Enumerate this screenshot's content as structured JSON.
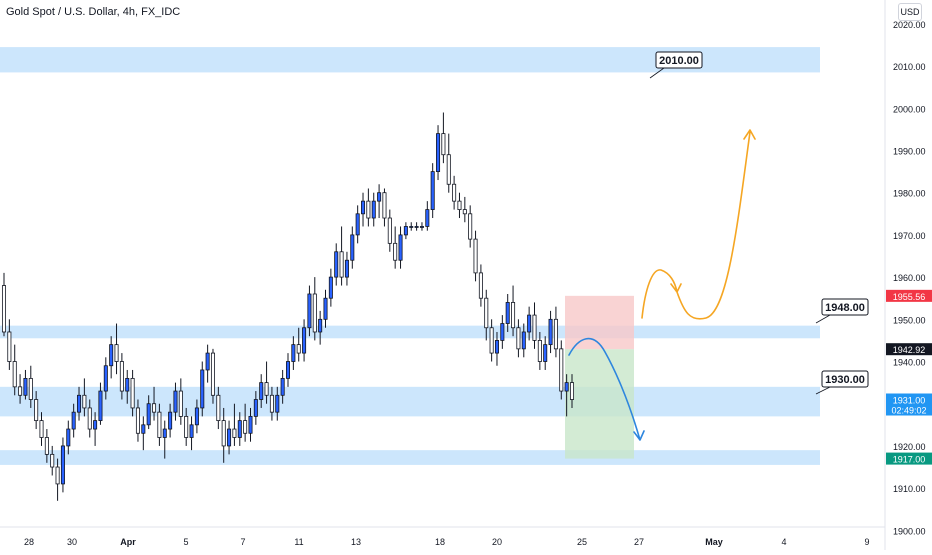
{
  "header": {
    "symbol_title": "Gold Spot / U.S. Dollar, 4h, FX_IDC",
    "currency_button": "USD"
  },
  "colors": {
    "up_candle": "#2962ff",
    "down_candle": "#ffffff",
    "wick": "#131722",
    "zone_fill": "#bbdefb",
    "stop_zone": "#f8c8c8",
    "target_zone": "#c8e6c9",
    "orange_path": "#f5a623",
    "blue_path": "#2e86de",
    "badge_red": "#f23645",
    "badge_blue": "#2196f3",
    "badge_green": "#089981",
    "badge_dark": "#131722"
  },
  "chart_data": {
    "type": "candlestick",
    "title": "Gold Spot / U.S. Dollar, 4h, FX_IDC",
    "ylim": [
      1897,
      2024
    ],
    "y_ticks": [
      "2020.00",
      "2010.00",
      "2000.00",
      "1990.00",
      "1980.00",
      "1970.00",
      "1960.00",
      "1950.00",
      "1940.00",
      "1930.00",
      "1920.00",
      "1910.00",
      "1900.00"
    ],
    "x_ticks": [
      "28",
      "30",
      "Apr",
      "5",
      "7",
      "11",
      "13",
      "18",
      "20",
      "25",
      "27",
      "May",
      "4",
      "9"
    ],
    "zones": [
      {
        "low": 2008.5,
        "high": 2014.5
      },
      {
        "low": 1945.5,
        "high": 1948.5
      },
      {
        "low": 1927,
        "high": 1934
      },
      {
        "low": 1915.5,
        "high": 1919
      }
    ],
    "position": {
      "entry": 1942.92,
      "stop": 1955.56,
      "target": 1917.0
    },
    "price_badges": [
      {
        "label": "1955.56",
        "value": 1955.56,
        "color": "red"
      },
      {
        "label": "1942.92",
        "value": 1942.92,
        "color": "dark"
      },
      {
        "label": "1931.00",
        "sub": "02:49:02",
        "value": 1931.0,
        "color": "blue"
      },
      {
        "label": "1917.00",
        "value": 1917.0,
        "color": "green"
      }
    ],
    "annotations": [
      {
        "label": "2010.00",
        "value": 2010.0
      },
      {
        "label": "1948.00",
        "value": 1948.0
      },
      {
        "label": "1930.00",
        "value": 1930.0
      }
    ],
    "candles": [
      [
        1958,
        1961,
        1946,
        1947
      ],
      [
        1947,
        1950,
        1938,
        1940
      ],
      [
        1940,
        1944,
        1932,
        1934
      ],
      [
        1934,
        1937,
        1930,
        1932
      ],
      [
        1932,
        1938,
        1931,
        1936
      ],
      [
        1936,
        1939,
        1929,
        1931
      ],
      [
        1931,
        1933,
        1924,
        1926
      ],
      [
        1926,
        1928,
        1920,
        1922
      ],
      [
        1922,
        1924,
        1916,
        1918
      ],
      [
        1918,
        1920,
        1913,
        1915
      ],
      [
        1915,
        1917,
        1907,
        1911
      ],
      [
        1911,
        1922,
        1909,
        1920
      ],
      [
        1920,
        1926,
        1918,
        1924
      ],
      [
        1924,
        1930,
        1922,
        1928
      ],
      [
        1928,
        1934,
        1926,
        1932
      ],
      [
        1932,
        1936,
        1927,
        1929
      ],
      [
        1929,
        1931,
        1922,
        1924
      ],
      [
        1924,
        1928,
        1920,
        1926
      ],
      [
        1926,
        1935,
        1925,
        1933
      ],
      [
        1933,
        1941,
        1931,
        1939
      ],
      [
        1939,
        1946,
        1936,
        1944
      ],
      [
        1944,
        1949,
        1937,
        1940
      ],
      [
        1940,
        1942,
        1931,
        1933
      ],
      [
        1933,
        1938,
        1930,
        1936
      ],
      [
        1936,
        1938,
        1927,
        1929
      ],
      [
        1929,
        1931,
        1921,
        1923
      ],
      [
        1923,
        1927,
        1919,
        1925
      ],
      [
        1925,
        1932,
        1924,
        1930
      ],
      [
        1930,
        1934,
        1926,
        1928
      ],
      [
        1928,
        1930,
        1920,
        1922
      ],
      [
        1922,
        1926,
        1917,
        1924
      ],
      [
        1924,
        1930,
        1922,
        1928
      ],
      [
        1928,
        1935,
        1926,
        1933
      ],
      [
        1933,
        1936,
        1925,
        1927
      ],
      [
        1927,
        1929,
        1920,
        1922
      ],
      [
        1922,
        1927,
        1919,
        1925
      ],
      [
        1925,
        1931,
        1923,
        1929
      ],
      [
        1929,
        1940,
        1927,
        1938
      ],
      [
        1938,
        1944,
        1935,
        1942
      ],
      [
        1942,
        1943,
        1930,
        1932
      ],
      [
        1932,
        1934,
        1924,
        1926
      ],
      [
        1926,
        1929,
        1916,
        1920
      ],
      [
        1920,
        1926,
        1918,
        1924
      ],
      [
        1924,
        1930,
        1920,
        1922
      ],
      [
        1922,
        1928,
        1920,
        1926
      ],
      [
        1926,
        1930,
        1921,
        1923
      ],
      [
        1923,
        1929,
        1921,
        1927
      ],
      [
        1927,
        1933,
        1925,
        1931
      ],
      [
        1931,
        1937,
        1929,
        1935
      ],
      [
        1935,
        1940,
        1930,
        1932
      ],
      [
        1932,
        1934,
        1926,
        1928
      ],
      [
        1928,
        1934,
        1926,
        1932
      ],
      [
        1932,
        1938,
        1930,
        1936
      ],
      [
        1936,
        1942,
        1934,
        1940
      ],
      [
        1940,
        1946,
        1938,
        1944
      ],
      [
        1944,
        1948,
        1940,
        1942
      ],
      [
        1942,
        1950,
        1940,
        1948
      ],
      [
        1948,
        1958,
        1946,
        1956
      ],
      [
        1956,
        1960,
        1945,
        1947
      ],
      [
        1947,
        1952,
        1944,
        1950
      ],
      [
        1950,
        1957,
        1948,
        1955
      ],
      [
        1955,
        1962,
        1953,
        1960
      ],
      [
        1960,
        1968,
        1958,
        1966
      ],
      [
        1966,
        1972,
        1958,
        1960
      ],
      [
        1960,
        1966,
        1958,
        1964
      ],
      [
        1964,
        1972,
        1962,
        1970
      ],
      [
        1970,
        1977,
        1968,
        1975
      ],
      [
        1975,
        1980,
        1972,
        1978
      ],
      [
        1978,
        1981,
        1972,
        1974
      ],
      [
        1974,
        1980,
        1972,
        1978
      ],
      [
        1978,
        1982,
        1974,
        1980
      ],
      [
        1980,
        1981,
        1972,
        1974
      ],
      [
        1974,
        1976,
        1966,
        1968
      ],
      [
        1968,
        1972,
        1962,
        1964
      ],
      [
        1964,
        1972,
        1962,
        1970
      ],
      [
        1970,
        1973,
        1969,
        1972
      ],
      [
        1972,
        1973,
        1971,
        1972
      ],
      [
        1972,
        1973,
        1971,
        1972
      ],
      [
        1972,
        1973,
        1971,
        1972
      ],
      [
        1972,
        1978,
        1971,
        1976
      ],
      [
        1976,
        1987,
        1974,
        1985
      ],
      [
        1985,
        1996,
        1983,
        1994
      ],
      [
        1994,
        1999,
        1987,
        1989
      ],
      [
        1989,
        1994,
        1980,
        1982
      ],
      [
        1982,
        1984,
        1976,
        1978
      ],
      [
        1978,
        1980,
        1974,
        1976
      ],
      [
        1976,
        1979,
        1973,
        1975
      ],
      [
        1975,
        1977,
        1967,
        1969
      ],
      [
        1969,
        1971,
        1959,
        1961
      ],
      [
        1961,
        1963,
        1953,
        1955
      ],
      [
        1955,
        1957,
        1945,
        1948
      ],
      [
        1948,
        1950,
        1940,
        1942
      ],
      [
        1942,
        1947,
        1939,
        1945
      ],
      [
        1945,
        1951,
        1943,
        1949
      ],
      [
        1949,
        1956,
        1947,
        1954
      ],
      [
        1954,
        1958,
        1946,
        1948
      ],
      [
        1948,
        1950,
        1941,
        1943
      ],
      [
        1943,
        1949,
        1941,
        1947
      ],
      [
        1947,
        1953,
        1945,
        1951
      ],
      [
        1951,
        1954,
        1943,
        1945
      ],
      [
        1945,
        1947,
        1938,
        1940
      ],
      [
        1940,
        1946,
        1938,
        1944
      ],
      [
        1944,
        1952,
        1942,
        1950
      ],
      [
        1950,
        1953,
        1941,
        1943
      ],
      [
        1943,
        1945,
        1931,
        1933
      ],
      [
        1933,
        1937,
        1927,
        1935
      ],
      [
        1935,
        1937,
        1929,
        1931
      ]
    ]
  }
}
